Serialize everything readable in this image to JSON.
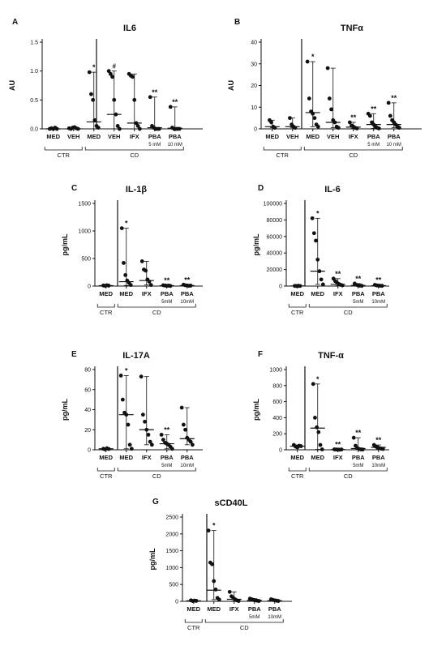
{
  "chart_data": [
    {
      "id": "A",
      "panel_letter": "A",
      "type": "scatter",
      "title": "IL6",
      "ylabel": "AU",
      "ylim": [
        0,
        1.5
      ],
      "yticks": [
        "0.0",
        "0.5",
        "1.0",
        "1.5"
      ],
      "ytick_values": [
        0,
        0.5,
        1.0,
        1.5
      ],
      "categories": [
        "MED",
        "VEH",
        "MED",
        "VEH",
        "IFX",
        "PBA",
        "PBA"
      ],
      "sublabels": [
        "",
        "",
        "",
        "",
        "",
        "5 mM",
        "10 mM"
      ],
      "marks": [
        "",
        "",
        "*",
        "#",
        "",
        "**",
        "**"
      ],
      "groups": [
        {
          "label": "CTR",
          "start": 0,
          "end": 1
        },
        {
          "label": "CD",
          "start": 2,
          "end": 6
        }
      ],
      "points": [
        [
          0,
          0.01,
          0,
          0.02,
          0
        ],
        [
          0.01,
          0,
          0.02,
          0.03,
          0.01,
          0
        ],
        [
          0.98,
          0.6,
          0.5,
          0.15,
          0.05,
          0.02
        ],
        [
          1.0,
          0.95,
          0.9,
          0.5,
          0.25,
          0.05,
          0
        ],
        [
          0.95,
          0.92,
          0.9,
          0.5,
          0.1,
          0.05,
          0
        ],
        [
          0.55,
          0.05,
          0.02,
          0,
          0,
          0
        ],
        [
          0.38,
          0.02,
          0,
          0,
          0,
          0
        ]
      ],
      "median": [
        0,
        0,
        0.12,
        0.25,
        0.1,
        0.02,
        0.01
      ],
      "upper": [
        0.02,
        0.03,
        0.98,
        1.0,
        0.95,
        0.55,
        0.38
      ],
      "lower": [
        0,
        0,
        0,
        0,
        0,
        0,
        0
      ]
    },
    {
      "id": "B",
      "panel_letter": "B",
      "type": "scatter",
      "title": "TNFα",
      "ylabel": "AU",
      "ylim": [
        0,
        40
      ],
      "yticks": [
        "0",
        "10",
        "20",
        "30",
        "40"
      ],
      "ytick_values": [
        0,
        10,
        20,
        30,
        40
      ],
      "categories": [
        "MED",
        "VEH",
        "MED",
        "VEH",
        "IFX",
        "PBA",
        "PBA"
      ],
      "sublabels": [
        "",
        "",
        "",
        "",
        "",
        "5 mM",
        "10 mM"
      ],
      "marks": [
        "",
        "",
        "*",
        "",
        "**",
        "**",
        "**"
      ],
      "groups": [
        {
          "label": "CTR",
          "start": 0,
          "end": 1
        },
        {
          "label": "CD",
          "start": 2,
          "end": 6
        }
      ],
      "points": [
        [
          4,
          3,
          1,
          0.5
        ],
        [
          5,
          2,
          1,
          0.5
        ],
        [
          31,
          14,
          8,
          7,
          5,
          2,
          1
        ],
        [
          28,
          14,
          9,
          4,
          3,
          1,
          0.5
        ],
        [
          3,
          1.5,
          1,
          0.5,
          0.2
        ],
        [
          7,
          6,
          3,
          2,
          1,
          0.5,
          0.2
        ],
        [
          12,
          6,
          4,
          3,
          2,
          1,
          0.5
        ]
      ],
      "median": [
        1,
        1,
        7.5,
        3,
        0.8,
        2,
        2
      ],
      "upper": [
        4,
        5,
        31,
        28,
        3,
        7,
        12
      ],
      "lower": [
        0.5,
        0.5,
        1,
        0.5,
        0.2,
        0.2,
        0.5
      ]
    },
    {
      "id": "C",
      "panel_letter": "C",
      "type": "scatter",
      "title": "IL-1β",
      "ylabel": "pg/mL",
      "ylim": [
        0,
        1500
      ],
      "yticks": [
        "0",
        "500",
        "1000",
        "1500"
      ],
      "ytick_values": [
        0,
        500,
        1000,
        1500
      ],
      "categories": [
        "MED",
        "MED",
        "IFX",
        "PBA",
        "PBA"
      ],
      "sublabels": [
        "",
        "",
        "",
        "5mM",
        "10mM"
      ],
      "marks": [
        "",
        "*",
        "",
        "**",
        "**"
      ],
      "groups": [
        {
          "label": "CTR",
          "start": 0,
          "end": 0
        },
        {
          "label": "CD",
          "start": 1,
          "end": 4
        }
      ],
      "points": [
        [
          10,
          5,
          15,
          8
        ],
        [
          1050,
          420,
          200,
          100,
          60,
          20
        ],
        [
          450,
          300,
          280,
          120,
          80,
          20
        ],
        [
          15,
          10,
          5,
          8,
          3
        ],
        [
          25,
          15,
          10,
          5,
          8
        ]
      ],
      "median": [
        8,
        80,
        100,
        8,
        10
      ],
      "upper": [
        15,
        1050,
        450,
        15,
        25
      ],
      "lower": [
        5,
        10,
        20,
        3,
        5
      ]
    },
    {
      "id": "D",
      "panel_letter": "D",
      "type": "scatter",
      "title": "IL-6",
      "ylabel": "pg/mL",
      "ylim": [
        0,
        100000
      ],
      "yticks": [
        "0",
        "20000",
        "40000",
        "60000",
        "80000",
        "100000"
      ],
      "ytick_values": [
        0,
        20000,
        40000,
        60000,
        80000,
        100000
      ],
      "categories": [
        "MED",
        "MED",
        "IFX",
        "PBA",
        "PBA"
      ],
      "sublabels": [
        "",
        "",
        "",
        "5mM",
        "10mM"
      ],
      "marks": [
        "",
        "*",
        "**",
        "**",
        "**"
      ],
      "groups": [
        {
          "label": "CTR",
          "start": 0,
          "end": 0
        },
        {
          "label": "CD",
          "start": 1,
          "end": 4
        }
      ],
      "points": [
        [
          200,
          100,
          300,
          150
        ],
        [
          82000,
          64000,
          55000,
          32000,
          18000,
          8000,
          2000
        ],
        [
          9000,
          6000,
          4000,
          2500,
          1500,
          800
        ],
        [
          3000,
          1500,
          800,
          500,
          300
        ],
        [
          1500,
          800,
          600,
          400,
          300
        ]
      ],
      "median": [
        200,
        18000,
        2000,
        800,
        500
      ],
      "upper": [
        300,
        82000,
        9000,
        3000,
        1500
      ],
      "lower": [
        100,
        2000,
        500,
        200,
        200
      ]
    },
    {
      "id": "E",
      "panel_letter": "E",
      "type": "scatter",
      "title": "IL-17A",
      "ylabel": "pg/mL",
      "ylim": [
        0,
        80
      ],
      "yticks": [
        "0",
        "20",
        "40",
        "60",
        "80"
      ],
      "ytick_values": [
        0,
        20,
        40,
        60,
        80
      ],
      "categories": [
        "MED",
        "MED",
        "IFX",
        "PBA",
        "PBA"
      ],
      "sublabels": [
        "",
        "",
        "",
        "5mM",
        "10mM"
      ],
      "marks": [
        "",
        "*",
        "",
        "**",
        ""
      ],
      "groups": [
        {
          "label": "CTR",
          "start": 0,
          "end": 0
        },
        {
          "label": "CD",
          "start": 1,
          "end": 4
        }
      ],
      "points": [
        [
          1,
          0.5,
          1.5,
          0.8
        ],
        [
          74,
          50,
          37,
          35,
          25,
          5,
          1
        ],
        [
          73,
          35,
          28,
          20,
          15,
          8,
          5
        ],
        [
          15,
          10,
          7,
          6,
          5,
          3,
          1
        ],
        [
          42,
          25,
          20,
          12,
          10,
          8,
          5
        ]
      ],
      "median": [
        1,
        35,
        20,
        6,
        11
      ],
      "upper": [
        1.5,
        74,
        73,
        15,
        42
      ],
      "lower": [
        0.5,
        1,
        5,
        1,
        5
      ]
    },
    {
      "id": "F",
      "panel_letter": "F",
      "type": "scatter",
      "title": "TNF-α",
      "ylabel": "pg/mL",
      "ylim": [
        0,
        1000
      ],
      "yticks": [
        "0",
        "200",
        "400",
        "600",
        "800",
        "1000"
      ],
      "ytick_values": [
        0,
        200,
        400,
        600,
        800,
        1000
      ],
      "categories": [
        "MED",
        "MED",
        "IFX",
        "PBA",
        "PBA"
      ],
      "sublabels": [
        "",
        "",
        "",
        "5mM",
        "10mM"
      ],
      "marks": [
        "",
        "*",
        "**",
        "**",
        "**"
      ],
      "groups": [
        {
          "label": "CTR",
          "start": 0,
          "end": 0
        },
        {
          "label": "CD",
          "start": 1,
          "end": 4
        }
      ],
      "points": [
        [
          60,
          40,
          30,
          50,
          45
        ],
        [
          820,
          400,
          280,
          220,
          60,
          5
        ],
        [
          5,
          3,
          2,
          1,
          4
        ],
        [
          150,
          50,
          20,
          10,
          5,
          3
        ],
        [
          60,
          40,
          30,
          20,
          15,
          10
        ]
      ],
      "median": [
        45,
        270,
        3,
        15,
        30
      ],
      "upper": [
        60,
        820,
        5,
        150,
        60
      ],
      "lower": [
        30,
        5,
        1,
        3,
        10
      ]
    },
    {
      "id": "G",
      "panel_letter": "G",
      "type": "scatter",
      "title": "sCD40L",
      "ylabel": "pg/mL",
      "ylim": [
        0,
        2500
      ],
      "yticks": [
        "0",
        "500",
        "1000",
        "1500",
        "2000",
        "2500"
      ],
      "ytick_values": [
        0,
        500,
        1000,
        1500,
        2000,
        2500
      ],
      "categories": [
        "MED",
        "MED",
        "IFX",
        "PBA",
        "PBA"
      ],
      "sublabels": [
        "",
        "",
        "",
        "5mM",
        "10mM"
      ],
      "marks": [
        "",
        "*",
        "",
        "",
        ""
      ],
      "groups": [
        {
          "label": "CTR",
          "start": 0,
          "end": 0
        },
        {
          "label": "CD",
          "start": 1,
          "end": 4
        }
      ],
      "points": [
        [
          30,
          10,
          20,
          15
        ],
        [
          2100,
          1150,
          1100,
          600,
          350,
          100,
          50
        ],
        [
          280,
          150,
          100,
          60,
          30,
          10
        ],
        [
          80,
          60,
          40,
          30,
          20,
          10
        ],
        [
          60,
          40,
          30,
          20,
          10
        ]
      ],
      "median": [
        15,
        330,
        60,
        30,
        20
      ],
      "upper": [
        30,
        2100,
        280,
        80,
        60
      ],
      "lower": [
        10,
        50,
        10,
        10,
        10
      ]
    }
  ]
}
